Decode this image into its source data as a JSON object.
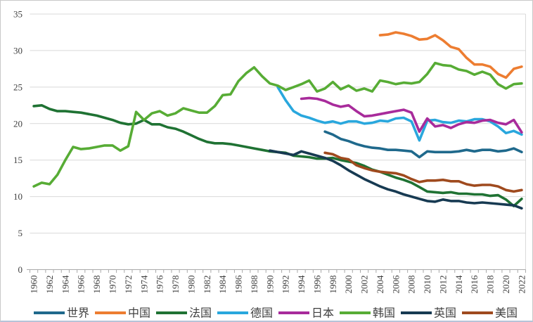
{
  "chart_data": {
    "type": "line",
    "title": "",
    "xlabel": "",
    "ylabel": "",
    "ylim": [
      0,
      35
    ],
    "y_ticks": [
      0,
      5,
      10,
      15,
      20,
      25,
      30,
      35
    ],
    "x_range": [
      1960,
      2022
    ],
    "x_tick_label_step": 2,
    "x_tick_labels": [
      "1960",
      "1962",
      "1964",
      "1966",
      "1968",
      "1970",
      "1972",
      "1974",
      "1976",
      "1978",
      "1980",
      "1982",
      "1984",
      "1986",
      "1988",
      "1990",
      "1992",
      "1994",
      "1996",
      "1998",
      "2000",
      "2002",
      "2004",
      "2006",
      "2008",
      "2010",
      "2012",
      "2014",
      "2016",
      "2018",
      "2020",
      "2022"
    ],
    "grid": true,
    "gridline_color": "#d9d9d9",
    "axis_color": "#a9a9a9",
    "label_color": "#3f3f3f",
    "legend_position": "bottom",
    "series": [
      {
        "name": "世界",
        "name_en": "world",
        "color": "#1f698c",
        "start_year": 1997,
        "values": [
          18.9,
          18.5,
          17.9,
          17.6,
          17.2,
          16.9,
          16.7,
          16.6,
          16.4,
          16.4,
          16.3,
          16.2,
          15.4,
          16.2,
          16.1,
          16.1,
          16.1,
          16.2,
          16.4,
          16.2,
          16.4,
          16.4,
          16.2,
          16.3,
          16.6,
          16.1
        ]
      },
      {
        "name": "中国",
        "name_en": "china",
        "color": "#ed7d31",
        "start_year": 2004,
        "values": [
          32.1,
          32.2,
          32.5,
          32.3,
          32.0,
          31.5,
          31.6,
          32.1,
          31.4,
          30.5,
          30.2,
          29.0,
          28.1,
          28.1,
          27.8,
          26.8,
          26.3,
          27.5,
          27.8
        ]
      },
      {
        "name": "法国",
        "name_en": "france",
        "color": "#1f7233",
        "start_year": 1960,
        "values": [
          22.4,
          22.5,
          22.0,
          21.7,
          21.7,
          21.6,
          21.5,
          21.3,
          21.1,
          20.8,
          20.5,
          20.1,
          19.9,
          20.0,
          20.5,
          19.9,
          19.9,
          19.5,
          19.3,
          18.9,
          18.4,
          17.9,
          17.5,
          17.3,
          17.3,
          17.2,
          17.0,
          16.8,
          16.6,
          16.4,
          16.2,
          16.1,
          16.0,
          15.6,
          15.5,
          15.4,
          15.2,
          15.2,
          15.3,
          15.0,
          14.8,
          14.6,
          14.2,
          13.7,
          13.4,
          13.0,
          12.6,
          12.3,
          11.9,
          11.3,
          10.7,
          10.6,
          10.5,
          10.6,
          10.4,
          10.4,
          10.3,
          10.3,
          10.1,
          10.2,
          9.6,
          8.7,
          9.7
        ]
      },
      {
        "name": "德国",
        "name_en": "germany",
        "color": "#29a7dd",
        "start_year": 1991,
        "values": [
          25.0,
          23.2,
          21.7,
          21.1,
          20.8,
          20.4,
          20.1,
          20.3,
          20.0,
          20.3,
          20.3,
          20.0,
          20.1,
          20.4,
          20.3,
          20.7,
          20.8,
          20.3,
          17.7,
          20.4,
          20.5,
          20.2,
          20.1,
          20.4,
          20.3,
          20.6,
          20.6,
          20.3,
          19.6,
          18.7,
          19.0,
          18.5
        ]
      },
      {
        "name": "日本",
        "name_en": "japan",
        "color": "#a82b9b",
        "start_year": 1994,
        "values": [
          23.4,
          23.5,
          23.4,
          23.1,
          22.6,
          22.3,
          22.5,
          21.7,
          21.0,
          21.1,
          21.3,
          21.5,
          21.7,
          21.9,
          21.5,
          18.9,
          20.7,
          19.6,
          19.8,
          19.4,
          19.9,
          20.2,
          20.1,
          20.4,
          20.5,
          20.1,
          19.9,
          20.5,
          18.8
        ]
      },
      {
        "name": "韩国",
        "name_en": "south-korea",
        "color": "#57ac35",
        "start_year": 1960,
        "values": [
          11.4,
          11.9,
          11.7,
          13.0,
          15.0,
          16.8,
          16.5,
          16.6,
          16.8,
          17.0,
          17.0,
          16.3,
          16.9,
          21.6,
          20.5,
          21.4,
          21.7,
          21.1,
          21.4,
          22.1,
          21.8,
          21.5,
          21.5,
          22.4,
          23.9,
          24.0,
          25.8,
          26.9,
          27.7,
          26.5,
          25.5,
          25.2,
          24.6,
          25.0,
          25.4,
          25.9,
          24.4,
          24.8,
          25.7,
          24.7,
          25.2,
          24.5,
          24.8,
          24.4,
          25.9,
          25.7,
          25.4,
          25.6,
          25.5,
          25.7,
          26.8,
          28.3,
          28.0,
          27.9,
          27.4,
          27.2,
          26.7,
          27.1,
          26.7,
          25.4,
          24.8,
          25.4,
          25.5
        ]
      },
      {
        "name": "英国",
        "name_en": "uk",
        "color": "#173a52",
        "start_year": 1990,
        "values": [
          16.3,
          16.1,
          15.9,
          15.7,
          16.2,
          15.9,
          15.6,
          15.3,
          14.9,
          14.3,
          13.6,
          13.0,
          12.4,
          11.9,
          11.4,
          11.0,
          10.7,
          10.3,
          10.0,
          9.7,
          9.4,
          9.3,
          9.6,
          9.4,
          9.4,
          9.2,
          9.1,
          9.2,
          9.1,
          9.0,
          8.9,
          8.8,
          8.4
        ]
      },
      {
        "name": "美国",
        "name_en": "usa",
        "color": "#9f4a1e",
        "start_year": 1997,
        "values": [
          16.0,
          15.8,
          15.3,
          15.1,
          14.3,
          13.9,
          13.6,
          13.4,
          13.3,
          13.2,
          12.9,
          12.4,
          12.0,
          12.2,
          12.2,
          12.3,
          12.1,
          12.1,
          11.7,
          11.5,
          11.6,
          11.6,
          11.4,
          10.9,
          10.7,
          10.9
        ]
      }
    ]
  }
}
